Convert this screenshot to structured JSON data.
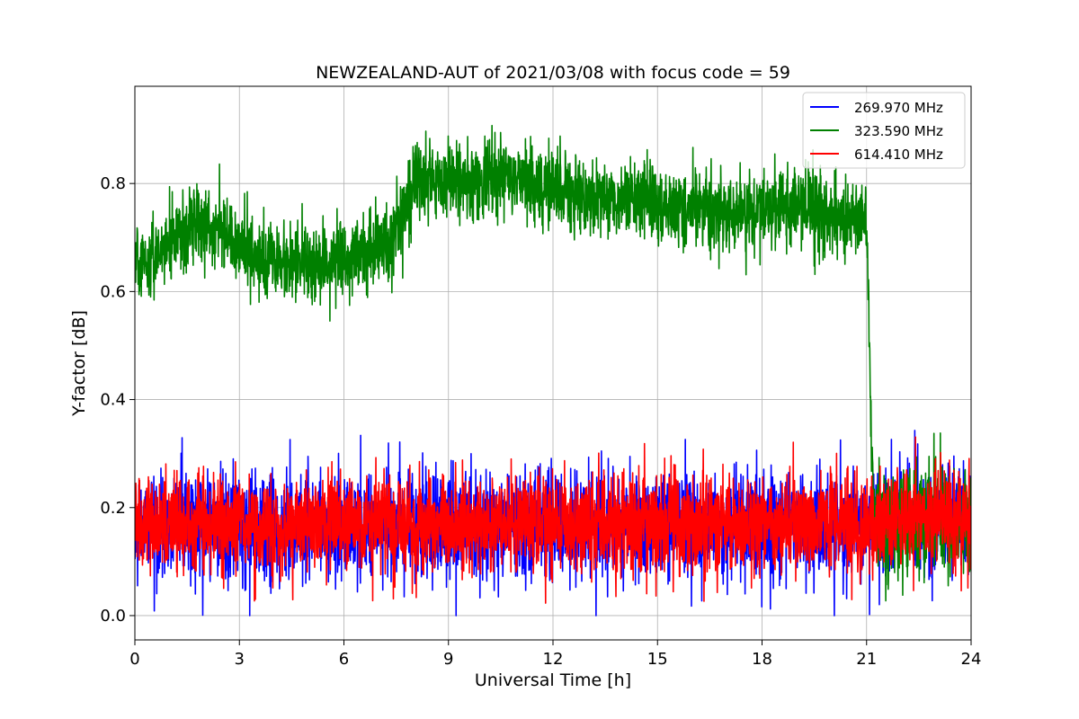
{
  "chart_data": {
    "type": "line",
    "title": "NEWZEALAND-AUT of 2021/03/08 with focus code = 59",
    "xlabel": "Universal Time [h]",
    "ylabel": "Y-factor [dB]",
    "xlim": [
      0,
      24
    ],
    "ylim": [
      -0.045,
      0.98
    ],
    "xticks": [
      0,
      3,
      6,
      9,
      12,
      15,
      18,
      21,
      24
    ],
    "xtick_labels": [
      "0",
      "3",
      "6",
      "9",
      "12",
      "15",
      "18",
      "21",
      "24"
    ],
    "yticks": [
      0.0,
      0.2,
      0.4,
      0.6,
      0.8
    ],
    "ytick_labels": [
      "0.0",
      "0.2",
      "0.4",
      "0.6",
      "0.8"
    ],
    "grid": true,
    "legend_position": "top-right",
    "series": [
      {
        "name": "269.970 MHz",
        "color": "#0000ff",
        "x": [
          0,
          3,
          6,
          9,
          12,
          15,
          18,
          21,
          21.2,
          24
        ],
        "y": [
          0.165,
          0.165,
          0.165,
          0.165,
          0.165,
          0.165,
          0.165,
          0.165,
          0.175,
          0.17
        ],
        "spread": [
          0.095,
          0.095,
          0.095,
          0.095,
          0.095,
          0.095,
          0.095,
          0.095,
          0.1,
          0.1
        ],
        "max_y": 0.35,
        "min_y": 0.0
      },
      {
        "name": "323.590 MHz",
        "color": "#008000",
        "x": [
          0,
          0.7,
          1.5,
          2.5,
          3.5,
          4.5,
          5.5,
          6.5,
          7.3,
          8,
          9,
          10,
          11,
          12,
          13,
          14,
          15,
          16,
          17,
          18,
          19,
          20,
          20.8,
          21.0,
          21.1,
          21.2,
          24
        ],
        "y": [
          0.66,
          0.66,
          0.72,
          0.71,
          0.66,
          0.65,
          0.65,
          0.67,
          0.69,
          0.8,
          0.81,
          0.8,
          0.81,
          0.79,
          0.77,
          0.77,
          0.76,
          0.76,
          0.75,
          0.75,
          0.76,
          0.74,
          0.73,
          0.72,
          0.45,
          0.17,
          0.17
        ],
        "spread": [
          0.06,
          0.06,
          0.07,
          0.07,
          0.07,
          0.07,
          0.07,
          0.07,
          0.07,
          0.07,
          0.07,
          0.07,
          0.07,
          0.07,
          0.07,
          0.07,
          0.07,
          0.07,
          0.07,
          0.07,
          0.07,
          0.07,
          0.07,
          0.06,
          0.05,
          0.1,
          0.1
        ],
        "max_y": 0.935,
        "min_y": 0.0
      },
      {
        "name": "614.410 MHz",
        "color": "#ff0000",
        "x": [
          0,
          3,
          6,
          9,
          12,
          15,
          18,
          21,
          21.2,
          24
        ],
        "y": [
          0.17,
          0.17,
          0.17,
          0.17,
          0.17,
          0.17,
          0.17,
          0.17,
          0.18,
          0.18
        ],
        "spread": [
          0.085,
          0.085,
          0.085,
          0.085,
          0.085,
          0.085,
          0.085,
          0.085,
          0.09,
          0.09
        ],
        "max_y": 0.345,
        "min_y": 0.0
      }
    ]
  }
}
